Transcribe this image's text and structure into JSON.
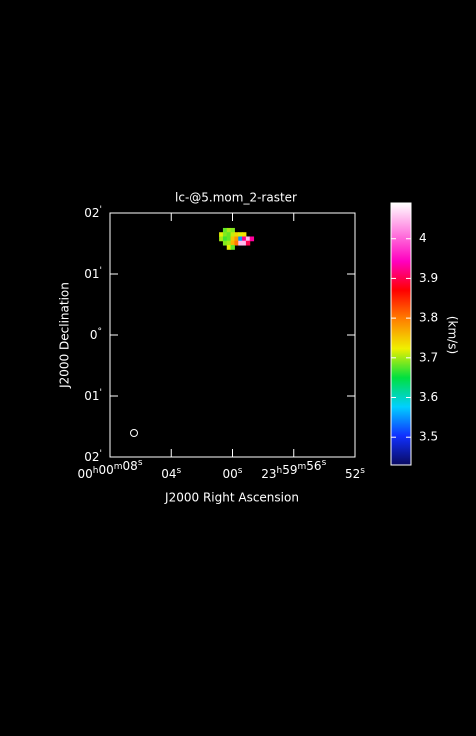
{
  "chart_data": {
    "type": "raster",
    "title": "lc-@5.mom_2-raster",
    "x_label": "J2000 Right Ascension",
    "y_label": "J2000 Declination",
    "colorbar_label": "(km/s)",
    "xlim": [
      8,
      -8
    ],
    "xticks": [
      {
        "value": 8,
        "label": "00h00m08s"
      },
      {
        "value": 4,
        "label": "04s"
      },
      {
        "value": 0,
        "label": "00s"
      },
      {
        "value": -4,
        "label": "23h59m56s"
      },
      {
        "value": -8,
        "label": "52s"
      }
    ],
    "ylim": [
      -2,
      2
    ],
    "yticks": [
      {
        "value": 2,
        "label": "02'"
      },
      {
        "value": 1,
        "label": "01'"
      },
      {
        "value": 0,
        "label": "0°"
      },
      {
        "value": -1,
        "label": "01'"
      },
      {
        "value": -2,
        "label": "02'"
      }
    ],
    "clim": [
      3.43,
      4.09
    ],
    "cticks": [
      3.5,
      3.6,
      3.7,
      3.8,
      3.9,
      4
    ],
    "colormap": [
      "#0a0a60",
      "#1030ff",
      "#00d0ff",
      "#00e040",
      "#f0f000",
      "#ff8000",
      "#ff0000",
      "#ff00c0",
      "#ff80e0",
      "#ffffff"
    ],
    "pixel_size": [
      0.25,
      0.07
    ],
    "pixels": [
      {
        "x": 0.5,
        "y": 1.72,
        "value": 3.68
      },
      {
        "x": 0.25,
        "y": 1.72,
        "value": 3.7
      },
      {
        "x": 0,
        "y": 1.72,
        "value": 3.69
      },
      {
        "x": 0.75,
        "y": 1.65,
        "value": 3.72
      },
      {
        "x": 0.5,
        "y": 1.65,
        "value": 3.69
      },
      {
        "x": 0.25,
        "y": 1.65,
        "value": 3.68
      },
      {
        "x": 0,
        "y": 1.65,
        "value": 3.71
      },
      {
        "x": -0.25,
        "y": 1.65,
        "value": 3.74
      },
      {
        "x": -0.5,
        "y": 1.65,
        "value": 3.72
      },
      {
        "x": -0.75,
        "y": 1.65,
        "value": 3.73
      },
      {
        "x": 0.75,
        "y": 1.58,
        "value": 3.7
      },
      {
        "x": 0.5,
        "y": 1.58,
        "value": 3.67
      },
      {
        "x": 0.25,
        "y": 1.58,
        "value": 3.68
      },
      {
        "x": 0,
        "y": 1.58,
        "value": 3.75
      },
      {
        "x": -0.25,
        "y": 1.58,
        "value": 3.78
      },
      {
        "x": -0.5,
        "y": 1.58,
        "value": 3.55
      },
      {
        "x": -0.75,
        "y": 1.58,
        "value": 3.92
      },
      {
        "x": -1,
        "y": 1.58,
        "value": 4.05
      },
      {
        "x": -1.25,
        "y": 1.58,
        "value": 3.93
      },
      {
        "x": 0.5,
        "y": 1.51,
        "value": 3.69
      },
      {
        "x": 0.25,
        "y": 1.51,
        "value": 3.7
      },
      {
        "x": 0,
        "y": 1.51,
        "value": 3.76
      },
      {
        "x": -0.25,
        "y": 1.51,
        "value": 3.8
      },
      {
        "x": -0.5,
        "y": 1.51,
        "value": 4.05
      },
      {
        "x": -0.75,
        "y": 1.51,
        "value": 4.05
      },
      {
        "x": -1,
        "y": 1.51,
        "value": 3.9
      },
      {
        "x": 0.25,
        "y": 1.44,
        "value": 3.72
      },
      {
        "x": 0,
        "y": 1.44,
        "value": 3.68
      }
    ]
  }
}
